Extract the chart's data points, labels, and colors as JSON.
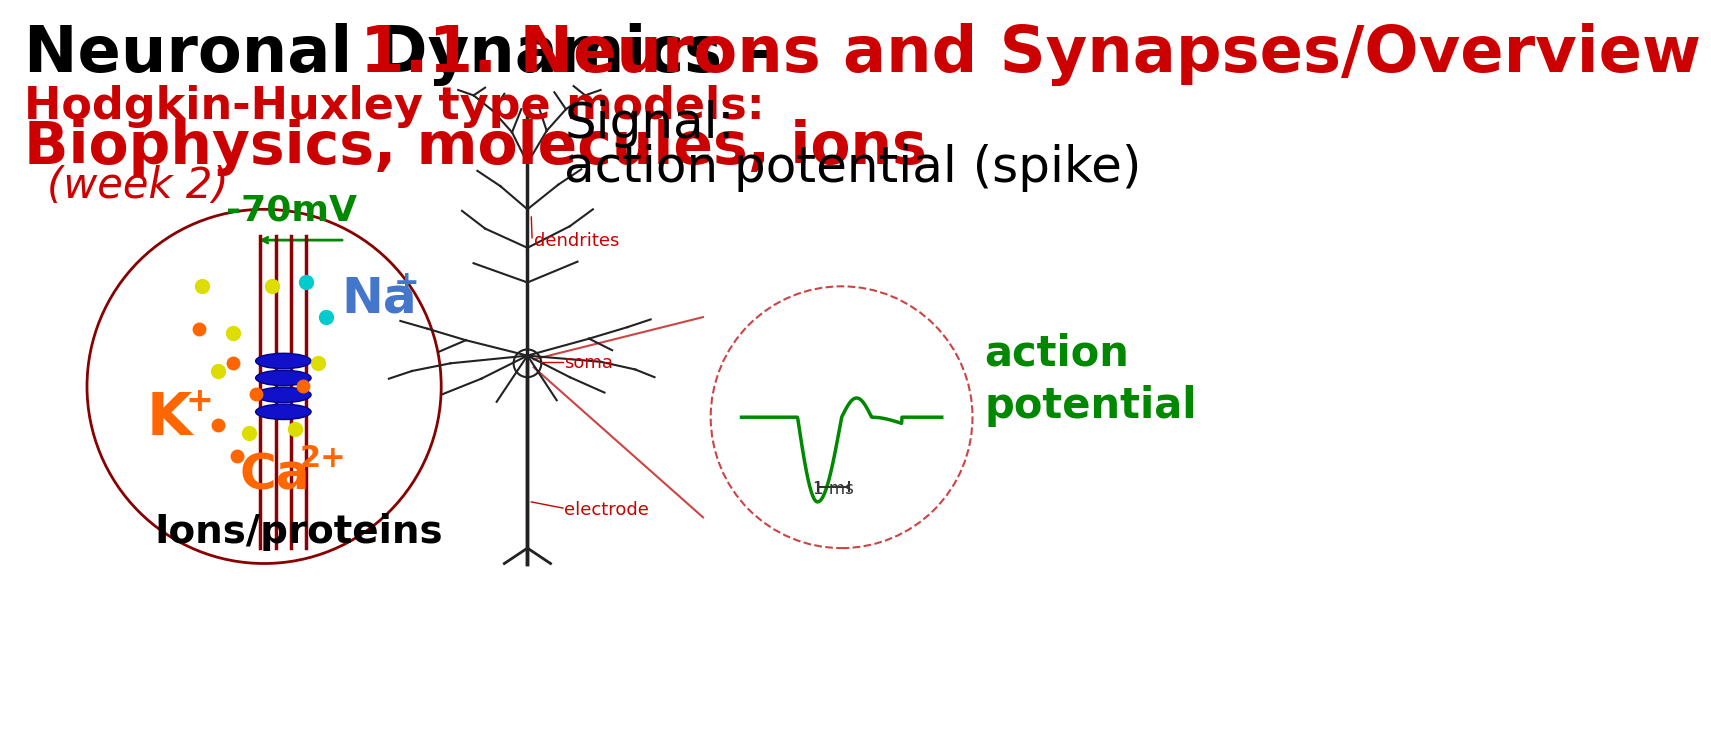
{
  "title_black": "Neuronal Dynamics – ",
  "title_red": "1.1. Neurons and Synapses/Overview",
  "hh_line1": "Hodgkin-Huxley type models:",
  "hh_line2": "Biophysics, molecules, ions",
  "hh_line3": "(week 2)",
  "signal_line1": "Signal:",
  "signal_line2": "action potential (spike)",
  "mv_label": "-70mV",
  "na_label": "Na",
  "na_sup": "+",
  "k_label": "K",
  "k_sup": "+",
  "ca_label": "Ca",
  "ca_sup": "2+",
  "ions_label": "Ions/proteins",
  "action_label": "action\npotential",
  "ms_label": "1 ms",
  "dendrites_label": "dendrites",
  "soma_label": "soma",
  "electrode_label": "electrode",
  "bg_color": "#ffffff",
  "title_color_black": "#000000",
  "title_color_red": "#cc0000",
  "red_text": "#cc0000",
  "black_text": "#000000",
  "green_color": "#008800",
  "orange_color": "#ff6600",
  "cyan_color": "#00cccc",
  "blue_color": "#0000cc",
  "dark_red": "#880000",
  "gray_neuron": "#222222"
}
